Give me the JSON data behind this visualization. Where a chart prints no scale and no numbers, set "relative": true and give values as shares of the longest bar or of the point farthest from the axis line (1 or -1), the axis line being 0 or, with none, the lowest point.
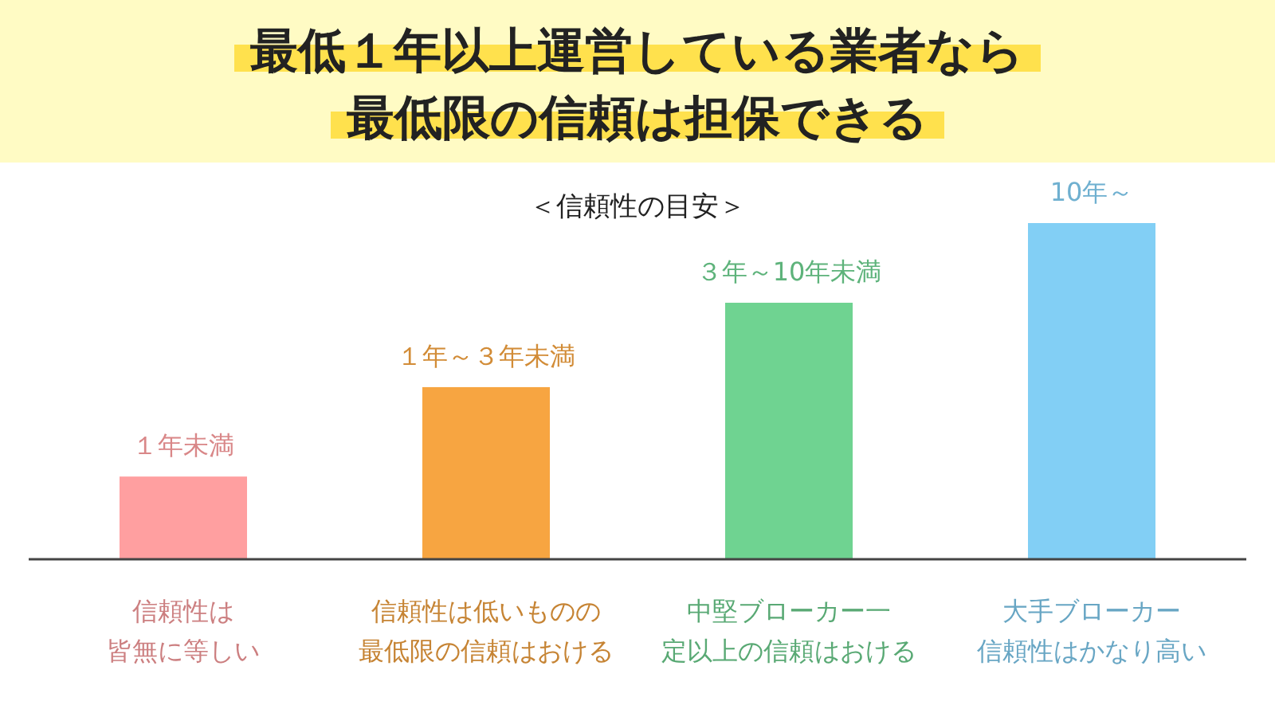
{
  "chart_data": {
    "type": "bar",
    "title": "最低１年以上運営している業者なら最低限の信頼は担保できる",
    "subtitle": "＜信頼性の目安＞",
    "relative": true,
    "categories": [
      "信頼性は皆無に等しい",
      "信頼性は低いものの最低限の信頼はおける",
      "中堅ブローカー一定以上の信頼はおける",
      "大手ブローカー信頼性はかなり高い"
    ],
    "values": [
      0.246,
      0.512,
      0.763,
      1
    ],
    "colors": [
      "#ff9fa0",
      "#f7a541",
      "#6fd391",
      "#82cff5"
    ],
    "annotations": [
      {
        "text": "１年未満",
        "x": "信頼性は皆無に等しい",
        "y": 0.246
      },
      {
        "text": "１年～３年未満",
        "x": "信頼性は低いものの最低限の信頼はおける",
        "y": 0.512
      },
      {
        "text": "３年～10年未満",
        "x": "中堅ブローカー一定以上の信頼はおける",
        "y": 0.763
      },
      {
        "text": "10年～",
        "x": "大手ブローカー信頼性はかなり高い",
        "y": 1
      }
    ]
  }
}
